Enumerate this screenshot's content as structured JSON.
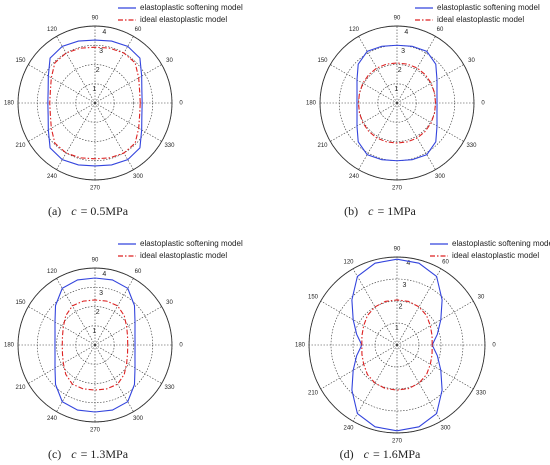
{
  "chart_data": [
    {
      "type": "polar",
      "caption_tag": "(a)",
      "caption_var": "c",
      "caption_rest": "= 0.5MPa",
      "x": [
        0,
        15,
        30,
        45,
        60,
        75,
        90,
        105,
        120,
        135,
        150,
        165,
        180,
        195,
        210,
        225,
        240,
        255,
        270,
        285,
        300,
        315,
        330,
        345
      ],
      "series": [
        {
          "name": "elastoplastic softening model",
          "color": "#3344dd",
          "linestyle": "solid",
          "values": [
            2.45,
            2.52,
            2.8,
            3.3,
            3.4,
            3.33,
            3.27,
            3.33,
            3.4,
            3.3,
            2.8,
            2.52,
            2.45,
            2.52,
            2.8,
            3.3,
            3.4,
            3.33,
            3.27,
            3.33,
            3.4,
            3.3,
            2.8,
            2.52
          ]
        },
        {
          "name": "ideal elastoplastic model",
          "color": "#dd2222",
          "linestyle": "dashed",
          "values": [
            2.35,
            2.4,
            2.62,
            2.95,
            3.0,
            2.95,
            2.9,
            2.95,
            3.0,
            2.95,
            2.62,
            2.4,
            2.35,
            2.4,
            2.62,
            2.95,
            3.0,
            2.95,
            2.9,
            2.95,
            3.0,
            2.95,
            2.62,
            2.4
          ]
        }
      ],
      "rlim": [
        0,
        4
      ],
      "rticks": [
        1,
        2,
        3,
        4
      ],
      "thetaticks": [
        0,
        30,
        60,
        90,
        120,
        150,
        180,
        210,
        240,
        270,
        300,
        330
      ],
      "grid": true
    },
    {
      "type": "polar",
      "caption_tag": "(b)",
      "caption_var": "c",
      "caption_rest": "= 1MPa",
      "x": [
        0,
        15,
        30,
        45,
        60,
        75,
        90,
        105,
        120,
        135,
        150,
        165,
        180,
        195,
        210,
        225,
        240,
        255,
        270,
        285,
        300,
        315,
        330,
        345
      ],
      "series": [
        {
          "name": "elastoplastic softening model",
          "color": "#3344dd",
          "linestyle": "solid",
          "values": [
            2.08,
            2.15,
            2.4,
            2.85,
            3.1,
            3.05,
            3.0,
            3.05,
            3.1,
            2.85,
            2.4,
            2.15,
            2.08,
            2.15,
            2.4,
            2.85,
            3.1,
            3.05,
            3.0,
            3.05,
            3.1,
            2.85,
            2.4,
            2.15
          ]
        },
        {
          "name": "ideal elastoplastic model",
          "color": "#dd2222",
          "linestyle": "dashed",
          "values": [
            2.0,
            2.02,
            2.05,
            2.08,
            2.1,
            2.09,
            2.08,
            2.09,
            2.1,
            2.08,
            2.05,
            2.02,
            2.0,
            2.02,
            2.05,
            2.08,
            2.1,
            2.09,
            2.08,
            2.09,
            2.1,
            2.08,
            2.05,
            2.02
          ]
        }
      ],
      "rlim": [
        0,
        4
      ],
      "rticks": [
        1,
        2,
        3,
        4
      ],
      "thetaticks": [
        0,
        30,
        60,
        90,
        120,
        150,
        180,
        210,
        240,
        270,
        300,
        330
      ],
      "grid": true
    },
    {
      "type": "polar",
      "caption_tag": "(c)",
      "caption_var": "c",
      "caption_rest": "= 1.3MPa",
      "x": [
        0,
        15,
        30,
        45,
        60,
        75,
        90,
        105,
        120,
        135,
        150,
        165,
        180,
        195,
        210,
        225,
        240,
        255,
        270,
        285,
        300,
        315,
        330,
        345
      ],
      "series": [
        {
          "name": "elastoplastic softening model",
          "color": "#3344dd",
          "linestyle": "solid",
          "values": [
            2.08,
            2.15,
            2.4,
            2.9,
            3.4,
            3.5,
            3.48,
            3.5,
            3.4,
            2.9,
            2.4,
            2.15,
            2.08,
            2.15,
            2.4,
            2.9,
            3.4,
            3.5,
            3.48,
            3.5,
            3.4,
            2.9,
            2.4,
            2.15
          ]
        },
        {
          "name": "ideal elastoplastic model",
          "color": "#dd2222",
          "linestyle": "dashed",
          "values": [
            1.7,
            1.75,
            1.9,
            2.15,
            2.35,
            2.36,
            2.34,
            2.36,
            2.35,
            2.15,
            1.9,
            1.75,
            1.7,
            1.75,
            1.9,
            2.15,
            2.35,
            2.36,
            2.34,
            2.36,
            2.35,
            2.15,
            1.9,
            1.75
          ]
        }
      ],
      "rlim": [
        0,
        4
      ],
      "rticks": [
        1,
        2,
        3,
        4
      ],
      "thetaticks": [
        0,
        30,
        60,
        90,
        120,
        150,
        180,
        210,
        240,
        270,
        300,
        330
      ],
      "grid": true
    },
    {
      "type": "polar",
      "caption_tag": "(d)",
      "caption_var": "c",
      "caption_rest": "= 1.6MPa",
      "x": [
        0,
        15,
        30,
        45,
        60,
        75,
        90,
        105,
        120,
        135,
        150,
        165,
        180,
        195,
        210,
        225,
        240,
        255,
        270,
        285,
        300,
        315,
        330,
        345
      ],
      "series": [
        {
          "name": "elastoplastic softening model",
          "color": "#3344dd",
          "linestyle": "solid",
          "values": [
            1.6,
            1.9,
            2.3,
            2.9,
            3.6,
            3.85,
            3.9,
            3.85,
            3.6,
            2.9,
            2.3,
            1.9,
            1.6,
            1.9,
            2.3,
            2.9,
            3.6,
            3.85,
            3.9,
            3.85,
            3.6,
            2.9,
            2.3,
            1.9
          ]
        },
        {
          "name": "ideal elastoplastic model",
          "color": "#dd2222",
          "linestyle": "dashed",
          "values": [
            1.6,
            1.65,
            1.75,
            1.9,
            2.0,
            2.05,
            2.05,
            2.05,
            2.0,
            1.9,
            1.75,
            1.65,
            1.6,
            1.65,
            1.75,
            1.9,
            2.0,
            2.05,
            2.05,
            2.05,
            2.0,
            1.9,
            1.75,
            1.65
          ]
        }
      ],
      "rlim": [
        0,
        4
      ],
      "rticks": [
        1,
        2,
        3,
        4
      ],
      "thetaticks": [
        0,
        30,
        60,
        90,
        120,
        150,
        180,
        210,
        240,
        270,
        300,
        330
      ],
      "grid": true
    }
  ]
}
